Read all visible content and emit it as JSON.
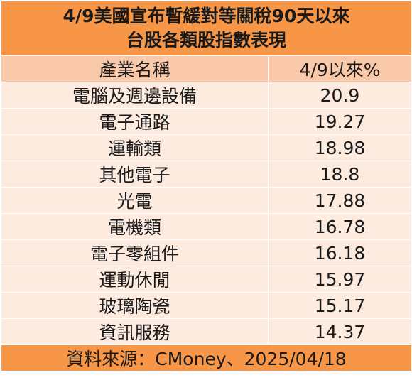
{
  "title": {
    "line1": "4/9美國宣布暫緩對等關稅90天以來",
    "line2": "台股各類股指數表現"
  },
  "header": {
    "name": "產業名稱",
    "value": "4/9以來%"
  },
  "rows": [
    {
      "name": "電腦及週邊設備",
      "value": "20.9"
    },
    {
      "name": "電子通路",
      "value": "19.27"
    },
    {
      "name": "運輸類",
      "value": "18.98"
    },
    {
      "name": "其他電子",
      "value": "18.8"
    },
    {
      "name": "光電",
      "value": "17.88"
    },
    {
      "name": "電機類",
      "value": "16.78"
    },
    {
      "name": "電子零組件",
      "value": "16.18"
    },
    {
      "name": "運動休閒",
      "value": "15.97"
    },
    {
      "name": "玻璃陶瓷",
      "value": "15.17"
    },
    {
      "name": "資訊服務",
      "value": "14.37"
    }
  ],
  "footer": {
    "source": "資料來源：CMoney、2025/04/18"
  },
  "colors": {
    "title_bg": "#f79646",
    "header_bg": "#f9c9a9",
    "row_bg": "#fdebe0"
  }
}
